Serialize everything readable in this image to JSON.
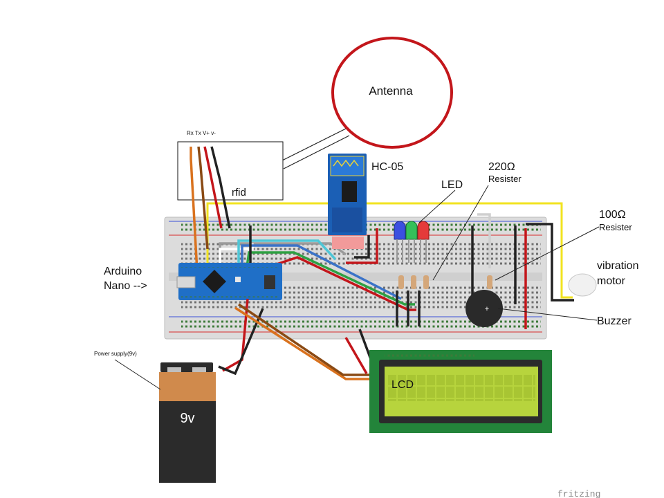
{
  "labels": {
    "antenna": "Antenna",
    "rfid_pins": "Rx Tx V+ v-",
    "rfid": "rfid",
    "hc05": "HC-05",
    "led": "LED",
    "r220_value": "220Ω",
    "r220_desc": "Resister",
    "r100_value": "100Ω",
    "r100_desc": "Resister",
    "vibration_line1": "vibration",
    "vibration_line2": "motor",
    "buzzer": "Buzzer",
    "arduino_line1": "Arduino",
    "arduino_line2": "Nano -->",
    "power_supply": "Power supply(9v)",
    "battery": "9v",
    "lcd": "LCD",
    "watermark": "fritzing"
  },
  "colors": {
    "antenna_ring": "#c3161b",
    "breadboard": "#dcdcdc",
    "arduino": "#1f6fc7",
    "hc05": "#1b5fb5",
    "battery_top": "#d08a4c",
    "battery_body": "#2b2b2b",
    "lcd_board": "#23843a",
    "lcd_screen": "#b7d43d",
    "wire_yellow": "#f2e320"
  }
}
